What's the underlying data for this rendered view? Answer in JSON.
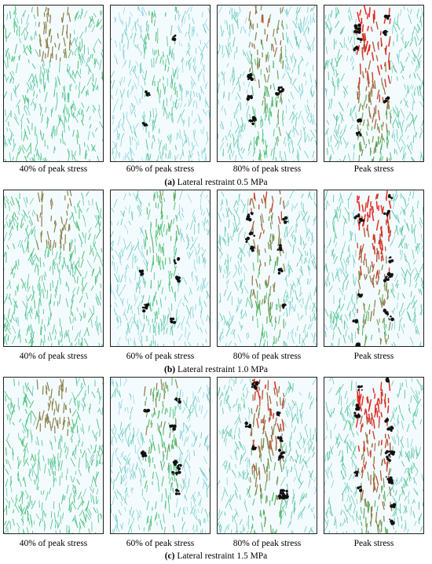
{
  "rows": [
    {
      "label": "(a)",
      "caption": "Lateral restraint 0.5 MPa",
      "panels": [
        "40% of peak stress",
        "60% of peak stress",
        "80% of peak stress",
        "Peak stress"
      ]
    },
    {
      "label": "(b)",
      "caption": "Lateral restraint 1.0 MPa",
      "panels": [
        "40% of peak stress",
        "60% of peak stress",
        "80% of peak stress",
        "Peak stress"
      ]
    },
    {
      "label": "(c)",
      "caption": "Lateral restraint 1.5 MPa",
      "panels": [
        "40% of peak stress",
        "60% of peak stress",
        "80% of peak stress",
        "Peak stress"
      ]
    }
  ],
  "colors": {
    "low": "#7fd0ea",
    "mid": "#49c26a",
    "high": "#e8201a",
    "damage": "#111111"
  }
}
